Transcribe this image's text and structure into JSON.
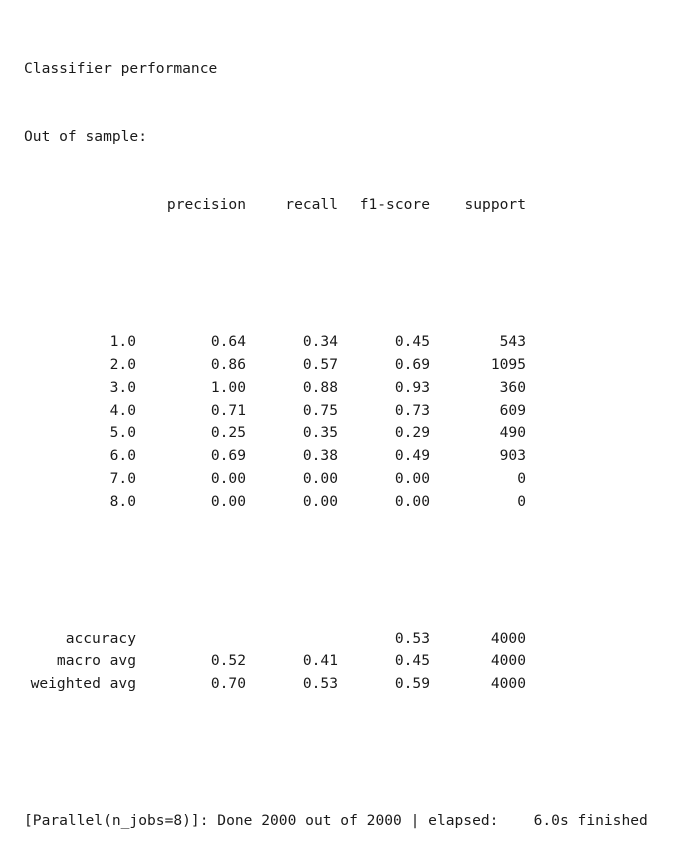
{
  "output": {
    "title": "Classifier performance",
    "subtitle": "Out of sample:",
    "headers": [
      "precision",
      "recall",
      "f1-score",
      "support"
    ],
    "rows": [
      {
        "label": "1.0",
        "precision": "0.64",
        "recall": "0.34",
        "f1": "0.45",
        "support": "543"
      },
      {
        "label": "2.0",
        "precision": "0.86",
        "recall": "0.57",
        "f1": "0.69",
        "support": "1095"
      },
      {
        "label": "3.0",
        "precision": "1.00",
        "recall": "0.88",
        "f1": "0.93",
        "support": "360"
      },
      {
        "label": "4.0",
        "precision": "0.71",
        "recall": "0.75",
        "f1": "0.73",
        "support": "609"
      },
      {
        "label": "5.0",
        "precision": "0.25",
        "recall": "0.35",
        "f1": "0.29",
        "support": "490"
      },
      {
        "label": "6.0",
        "precision": "0.69",
        "recall": "0.38",
        "f1": "0.49",
        "support": "903"
      },
      {
        "label": "7.0",
        "precision": "0.00",
        "recall": "0.00",
        "f1": "0.00",
        "support": "0"
      },
      {
        "label": "8.0",
        "precision": "0.00",
        "recall": "0.00",
        "f1": "0.00",
        "support": "0"
      }
    ],
    "summary": [
      {
        "label": "accuracy",
        "precision": "",
        "recall": "",
        "f1": "0.53",
        "support": "4000"
      },
      {
        "label": "macro avg",
        "precision": "0.52",
        "recall": "0.41",
        "f1": "0.45",
        "support": "4000"
      },
      {
        "label": "weighted avg",
        "precision": "0.70",
        "recall": "0.53",
        "f1": "0.59",
        "support": "4000"
      }
    ],
    "status_line": "[Parallel(n_jobs=8)]: Done 2000 out of 2000 | elapsed:    6.0s finished"
  }
}
